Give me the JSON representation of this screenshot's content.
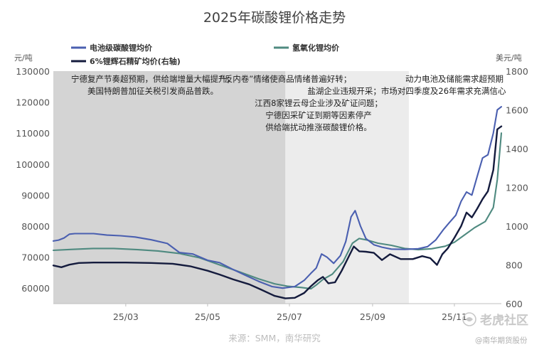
{
  "chart_data": {
    "type": "line",
    "title": "2025年碳酸锂价格走势",
    "ylabel_left": "元/吨",
    "ylabel_right": "美元/吨",
    "ylim_left": [
      55000,
      130000
    ],
    "ylim_right": [
      600,
      1800
    ],
    "y_ticks_left": [
      "60000",
      "70000",
      "80000",
      "90000",
      "100000",
      "110000",
      "120000",
      "130000"
    ],
    "y_ticks_right": [
      "600",
      "800",
      "1000",
      "1200",
      "1400",
      "1600",
      "1800"
    ],
    "x_ticks": [
      "25/03",
      "25/05",
      "25/07",
      "25/09",
      "25/11"
    ],
    "x_range": [
      "2025-01-06",
      "2025-12-06"
    ],
    "series": [
      {
        "name": "电池级碳酸锂均价",
        "axis": "left",
        "color": "#4a5fb0",
        "points": [
          [
            "2025-01-06",
            75200
          ],
          [
            "2025-01-10",
            75500
          ],
          [
            "2025-01-14",
            76200
          ],
          [
            "2025-01-18",
            77400
          ],
          [
            "2025-01-22",
            77600
          ],
          [
            "2025-02-05",
            77600
          ],
          [
            "2025-02-15",
            77100
          ],
          [
            "2025-02-25",
            76900
          ],
          [
            "2025-03-08",
            76500
          ],
          [
            "2025-03-20",
            75600
          ],
          [
            "2025-04-01",
            74400
          ],
          [
            "2025-04-10",
            71500
          ],
          [
            "2025-04-20",
            71000
          ],
          [
            "2025-05-01",
            69000
          ],
          [
            "2025-05-10",
            68200
          ],
          [
            "2025-05-20",
            66000
          ],
          [
            "2025-05-30",
            64000
          ],
          [
            "2025-06-08",
            62200
          ],
          [
            "2025-06-18",
            60500
          ],
          [
            "2025-06-26",
            60000
          ],
          [
            "2025-07-05",
            60500
          ],
          [
            "2025-07-12",
            62500
          ],
          [
            "2025-07-17",
            64800
          ],
          [
            "2025-07-21",
            66500
          ],
          [
            "2025-07-25",
            71000
          ],
          [
            "2025-07-29",
            70000
          ],
          [
            "2025-08-03",
            68000
          ],
          [
            "2025-08-08",
            70500
          ],
          [
            "2025-08-12",
            75000
          ],
          [
            "2025-08-16",
            83000
          ],
          [
            "2025-08-19",
            85000
          ],
          [
            "2025-08-23",
            80000
          ],
          [
            "2025-08-27",
            76000
          ],
          [
            "2025-09-02",
            74000
          ],
          [
            "2025-09-08",
            73200
          ],
          [
            "2025-09-15",
            72600
          ],
          [
            "2025-09-25",
            72500
          ],
          [
            "2025-10-05",
            72700
          ],
          [
            "2025-10-12",
            73400
          ],
          [
            "2025-10-18",
            75500
          ],
          [
            "2025-10-24",
            79000
          ],
          [
            "2025-10-28",
            81000
          ],
          [
            "2025-11-02",
            83500
          ],
          [
            "2025-11-06",
            88000
          ],
          [
            "2025-11-10",
            91000
          ],
          [
            "2025-11-14",
            90000
          ],
          [
            "2025-11-18",
            96000
          ],
          [
            "2025-11-22",
            102000
          ],
          [
            "2025-11-26",
            103000
          ],
          [
            "2025-11-30",
            110000
          ],
          [
            "2025-12-03",
            117500
          ],
          [
            "2025-12-06",
            118500
          ]
        ]
      },
      {
        "name": "6%锂辉石精矿均价(右轴)",
        "axis": "right",
        "color": "#141b3d",
        "points": [
          [
            "2025-01-06",
            797
          ],
          [
            "2025-01-12",
            788
          ],
          [
            "2025-01-18",
            801
          ],
          [
            "2025-01-25",
            810
          ],
          [
            "2025-02-05",
            812
          ],
          [
            "2025-02-15",
            812
          ],
          [
            "2025-03-01",
            812
          ],
          [
            "2025-03-20",
            810
          ],
          [
            "2025-04-05",
            806
          ],
          [
            "2025-04-18",
            793
          ],
          [
            "2025-05-01",
            770
          ],
          [
            "2025-05-10",
            750
          ],
          [
            "2025-05-20",
            725
          ],
          [
            "2025-06-01",
            700
          ],
          [
            "2025-06-10",
            672
          ],
          [
            "2025-06-20",
            640
          ],
          [
            "2025-06-28",
            627
          ],
          [
            "2025-07-05",
            630
          ],
          [
            "2025-07-12",
            655
          ],
          [
            "2025-07-17",
            690
          ],
          [
            "2025-07-22",
            720
          ],
          [
            "2025-07-26",
            738
          ],
          [
            "2025-07-30",
            705
          ],
          [
            "2025-08-04",
            710
          ],
          [
            "2025-08-09",
            770
          ],
          [
            "2025-08-14",
            840
          ],
          [
            "2025-08-18",
            895
          ],
          [
            "2025-08-22",
            870
          ],
          [
            "2025-08-27",
            868
          ],
          [
            "2025-09-02",
            862
          ],
          [
            "2025-09-08",
            825
          ],
          [
            "2025-09-14",
            855
          ],
          [
            "2025-09-22",
            830
          ],
          [
            "2025-10-01",
            830
          ],
          [
            "2025-10-08",
            845
          ],
          [
            "2025-10-14",
            835
          ],
          [
            "2025-10-19",
            800
          ],
          [
            "2025-10-23",
            855
          ],
          [
            "2025-10-27",
            885
          ],
          [
            "2025-11-01",
            940
          ],
          [
            "2025-11-06",
            1000
          ],
          [
            "2025-11-10",
            1070
          ],
          [
            "2025-11-14",
            1045
          ],
          [
            "2025-11-18",
            1090
          ],
          [
            "2025-11-22",
            1140
          ],
          [
            "2025-11-26",
            1180
          ],
          [
            "2025-11-30",
            1290
          ],
          [
            "2025-12-03",
            1500
          ],
          [
            "2025-12-06",
            1515
          ]
        ]
      },
      {
        "name": "氢氧化锂均价",
        "axis": "left",
        "color": "#4f8a80",
        "points": [
          [
            "2025-01-06",
            72200
          ],
          [
            "2025-01-20",
            72500
          ],
          [
            "2025-02-05",
            72800
          ],
          [
            "2025-02-20",
            72800
          ],
          [
            "2025-03-10",
            72400
          ],
          [
            "2025-03-25",
            72000
          ],
          [
            "2025-04-10",
            71200
          ],
          [
            "2025-04-25",
            69800
          ],
          [
            "2025-05-10",
            67500
          ],
          [
            "2025-05-25",
            65200
          ],
          [
            "2025-06-08",
            63000
          ],
          [
            "2025-06-20",
            61400
          ],
          [
            "2025-06-30",
            60600
          ],
          [
            "2025-07-10",
            60200
          ],
          [
            "2025-07-17",
            59800
          ],
          [
            "2025-07-21",
            61000
          ],
          [
            "2025-07-26",
            62800
          ],
          [
            "2025-08-02",
            64500
          ],
          [
            "2025-08-10",
            68500
          ],
          [
            "2025-08-17",
            74500
          ],
          [
            "2025-08-22",
            76000
          ],
          [
            "2025-08-28",
            75500
          ],
          [
            "2025-09-05",
            74500
          ],
          [
            "2025-09-15",
            73800
          ],
          [
            "2025-09-25",
            72800
          ],
          [
            "2025-10-05",
            72400
          ],
          [
            "2025-10-15",
            72700
          ],
          [
            "2025-10-25",
            73500
          ],
          [
            "2025-11-01",
            74800
          ],
          [
            "2025-11-08",
            77000
          ],
          [
            "2025-11-16",
            79500
          ],
          [
            "2025-11-24",
            81500
          ],
          [
            "2025-11-30",
            86000
          ],
          [
            "2025-12-03",
            95000
          ],
          [
            "2025-12-06",
            110000
          ]
        ]
      }
    ],
    "shaded_periods": [
      {
        "start": "2025-01-06",
        "end": "2025-06-28",
        "color": "#d4d4d4"
      },
      {
        "start": "2025-06-28",
        "end": "2025-09-28",
        "color": "#ececec"
      }
    ],
    "annotations": [
      [
        "宁德复产节奏超预期，供给端增量大幅提升；",
        "美国特朗普加征关税引发商品普跌。"
      ],
      [
        "“反内卷”情绪使商品情绪普遍好转；",
        "江西8家锂云母企业涉及矿证问题；",
        "宁德因采矿证到期等因素停产",
        "供给端扰动推涨碳酸锂价格。"
      ],
      [
        "动力电池及储能需求超预期",
        "盐湖企业违规开采；市场对四季度及26年需求充满信心"
      ]
    ],
    "legend_position": "top",
    "grid": false
  },
  "source": "来源：SMM，南华研究",
  "watermark": {
    "text": "老虎社区",
    "sub": "@南华期货股份"
  }
}
